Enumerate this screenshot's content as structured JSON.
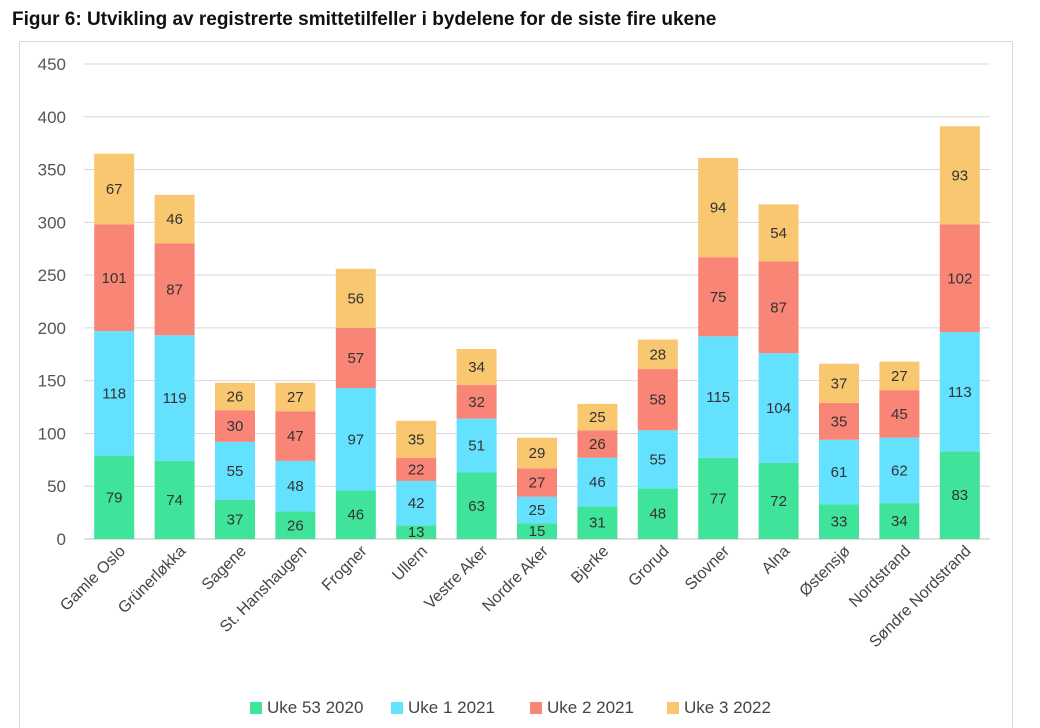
{
  "figure": {
    "title": "Figur 6: Utvikling av registrerte smittetilfeller i bydelene for de siste fire ukene"
  },
  "chart_data": {
    "type": "bar",
    "stacked": true,
    "title": "",
    "xlabel": "",
    "ylabel": "",
    "ylim": [
      0,
      450
    ],
    "yticks": [
      0,
      50,
      100,
      150,
      200,
      250,
      300,
      350,
      400,
      450
    ],
    "grid": true,
    "legend_position": "bottom",
    "categories": [
      "Gamle Oslo",
      "Grünerløkka",
      "Sagene",
      "St. Hanshaugen",
      "Frogner",
      "Ullern",
      "Vestre Aker",
      "Nordre Aker",
      "Bjerke",
      "Grorud",
      "Stovner",
      "Alna",
      "Østensjø",
      "Nordstrand",
      "Søndre Nordstrand"
    ],
    "series": [
      {
        "name": "Uke 53 2020",
        "color": "#40e39a",
        "values": [
          79,
          74,
          37,
          26,
          46,
          13,
          63,
          15,
          31,
          48,
          77,
          72,
          33,
          34,
          83
        ]
      },
      {
        "name": "Uke 1 2021",
        "color": "#64e1ff",
        "values": [
          118,
          119,
          55,
          48,
          97,
          42,
          51,
          25,
          46,
          55,
          115,
          104,
          61,
          62,
          113
        ]
      },
      {
        "name": "Uke 2 2021",
        "color": "#f98577",
        "values": [
          101,
          87,
          30,
          47,
          57,
          22,
          32,
          27,
          26,
          58,
          75,
          87,
          35,
          45,
          102
        ]
      },
      {
        "name": "Uke 3 2022",
        "color": "#f8c76f",
        "values": [
          67,
          46,
          26,
          27,
          56,
          35,
          34,
          29,
          25,
          28,
          94,
          54,
          37,
          27,
          93
        ]
      }
    ]
  }
}
